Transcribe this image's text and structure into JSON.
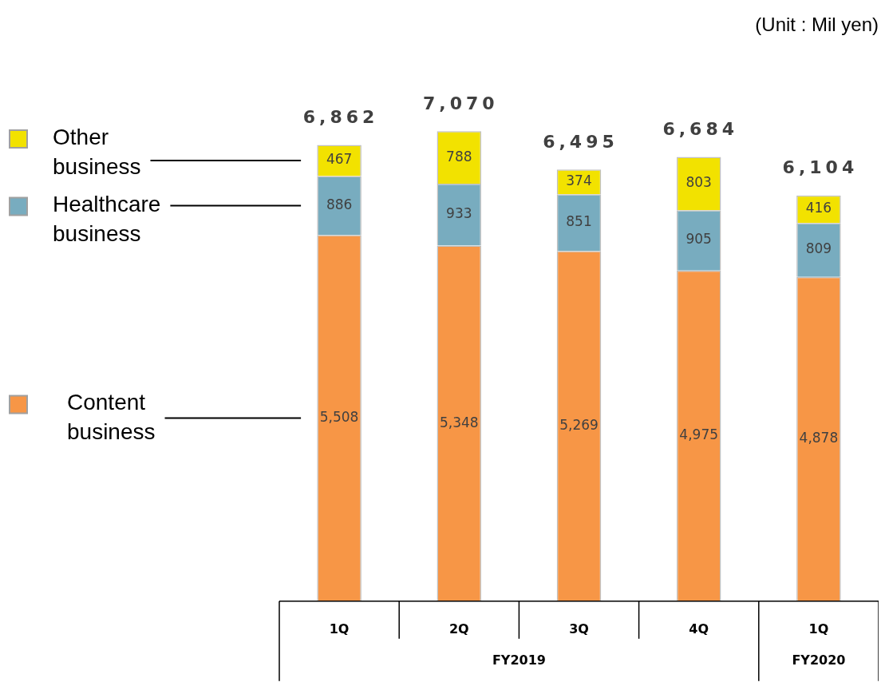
{
  "chart_data": {
    "type": "bar",
    "subtitle": "(Unit : Mil yen)",
    "stacked": true,
    "legend": "left",
    "categories": [
      "1Q",
      "2Q",
      "3Q",
      "4Q",
      "1Q"
    ],
    "series": [
      {
        "name": "Content business",
        "color": "#f79646",
        "values": [
          5508,
          5348,
          5269,
          4975,
          4878
        ],
        "value_labels": [
          "5,508",
          "5,348",
          "5,269",
          "4,975",
          "4,878"
        ]
      },
      {
        "name": "Healthcare business",
        "color": "#78acbf",
        "values": [
          886,
          933,
          851,
          905,
          809
        ],
        "value_labels": [
          "886",
          "933",
          "851",
          "905",
          "809"
        ]
      },
      {
        "name": "Other business",
        "color": "#f2e200",
        "values": [
          467,
          788,
          374,
          803,
          416
        ],
        "value_labels": [
          "467",
          "788",
          "374",
          "803",
          "416"
        ]
      }
    ],
    "totals": [
      "6,862",
      "7,070",
      "6,495",
      "6,684",
      "6,104"
    ],
    "annotations": [
      "FY2019",
      "FY2020"
    ]
  }
}
